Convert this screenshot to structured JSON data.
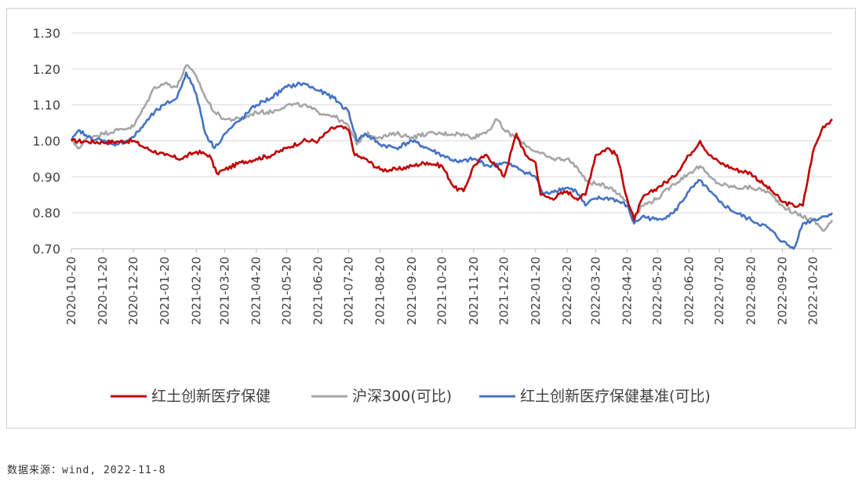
{
  "source_note": "数据来源：wind, 2022-11-8",
  "chart_data": {
    "type": "line",
    "title": "",
    "xlabel": "",
    "ylabel": "",
    "ylim": [
      0.7,
      1.3
    ],
    "yticks": [
      "1.30",
      "1.20",
      "1.10",
      "1.00",
      "0.90",
      "0.80",
      "0.70"
    ],
    "ytick_values": [
      1.3,
      1.2,
      1.1,
      1.0,
      0.9,
      0.8,
      0.7
    ],
    "grid": "horizontal",
    "legend_position": "bottom",
    "x_start": "2020-10-20",
    "x_end": "2022-11-08",
    "x_ticks": [
      "2020-10-20",
      "2020-11-20",
      "2020-12-20",
      "2021-01-20",
      "2021-02-20",
      "2021-03-20",
      "2021-04-20",
      "2021-05-20",
      "2021-06-20",
      "2021-07-20",
      "2021-08-20",
      "2021-09-20",
      "2021-10-20",
      "2021-11-20",
      "2021-12-20",
      "2022-01-20",
      "2022-02-20",
      "2022-03-20",
      "2022-04-20",
      "2022-05-20",
      "2022-06-20",
      "2022-07-20",
      "2022-08-20",
      "2022-09-20",
      "2022-10-20"
    ],
    "series": [
      {
        "name": "红土创新医疗保健",
        "color": "#C00000",
        "points": [
          [
            "2020-10-20",
            1.0
          ],
          [
            "2020-11-05",
            0.998
          ],
          [
            "2020-11-20",
            0.996
          ],
          [
            "2020-12-05",
            0.998
          ],
          [
            "2020-12-20",
            1.0
          ],
          [
            "2021-01-01",
            0.98
          ],
          [
            "2021-01-20",
            0.96
          ],
          [
            "2021-02-05",
            0.95
          ],
          [
            "2021-02-20",
            0.97
          ],
          [
            "2021-03-05",
            0.96
          ],
          [
            "2021-03-12",
            0.91
          ],
          [
            "2021-03-20",
            0.92
          ],
          [
            "2021-04-05",
            0.94
          ],
          [
            "2021-04-20",
            0.95
          ],
          [
            "2021-05-05",
            0.96
          ],
          [
            "2021-05-20",
            0.98
          ],
          [
            "2021-06-05",
            1.0
          ],
          [
            "2021-06-20",
            1.0
          ],
          [
            "2021-07-01",
            1.03
          ],
          [
            "2021-07-10",
            1.04
          ],
          [
            "2021-07-20",
            1.03
          ],
          [
            "2021-07-26",
            0.96
          ],
          [
            "2021-08-05",
            0.95
          ],
          [
            "2021-08-20",
            0.92
          ],
          [
            "2021-09-05",
            0.92
          ],
          [
            "2021-09-20",
            0.93
          ],
          [
            "2021-10-05",
            0.94
          ],
          [
            "2021-10-20",
            0.93
          ],
          [
            "2021-11-01",
            0.87
          ],
          [
            "2021-11-10",
            0.86
          ],
          [
            "2021-11-20",
            0.93
          ],
          [
            "2021-12-01",
            0.96
          ],
          [
            "2021-12-10",
            0.94
          ],
          [
            "2021-12-20",
            0.9
          ],
          [
            "2022-01-01",
            1.02
          ],
          [
            "2022-01-10",
            0.96
          ],
          [
            "2022-01-20",
            0.94
          ],
          [
            "2022-01-25",
            0.85
          ],
          [
            "2022-02-05",
            0.84
          ],
          [
            "2022-02-20",
            0.86
          ],
          [
            "2022-03-01",
            0.84
          ],
          [
            "2022-03-10",
            0.85
          ],
          [
            "2022-03-20",
            0.96
          ],
          [
            "2022-04-01",
            0.98
          ],
          [
            "2022-04-10",
            0.96
          ],
          [
            "2022-04-20",
            0.84
          ],
          [
            "2022-04-27",
            0.78
          ],
          [
            "2022-05-05",
            0.84
          ],
          [
            "2022-05-20",
            0.87
          ],
          [
            "2022-06-05",
            0.9
          ],
          [
            "2022-06-20",
            0.96
          ],
          [
            "2022-07-01",
            1.0
          ],
          [
            "2022-07-10",
            0.96
          ],
          [
            "2022-07-20",
            0.94
          ],
          [
            "2022-08-05",
            0.92
          ],
          [
            "2022-08-20",
            0.91
          ],
          [
            "2022-09-01",
            0.88
          ],
          [
            "2022-09-10",
            0.86
          ],
          [
            "2022-09-20",
            0.83
          ],
          [
            "2022-10-01",
            0.82
          ],
          [
            "2022-10-10",
            0.82
          ],
          [
            "2022-10-20",
            0.97
          ],
          [
            "2022-10-30",
            1.04
          ],
          [
            "2022-11-08",
            1.06
          ]
        ]
      },
      {
        "name": "沪深300(可比)",
        "color": "#A6A6A6",
        "points": [
          [
            "2020-10-20",
            1.0
          ],
          [
            "2020-10-28",
            0.98
          ],
          [
            "2020-11-05",
            1.01
          ],
          [
            "2020-11-20",
            1.02
          ],
          [
            "2020-12-05",
            1.03
          ],
          [
            "2020-12-20",
            1.04
          ],
          [
            "2021-01-01",
            1.1
          ],
          [
            "2021-01-10",
            1.15
          ],
          [
            "2021-01-20",
            1.16
          ],
          [
            "2021-02-01",
            1.15
          ],
          [
            "2021-02-10",
            1.21
          ],
          [
            "2021-02-20",
            1.18
          ],
          [
            "2021-03-01",
            1.12
          ],
          [
            "2021-03-10",
            1.08
          ],
          [
            "2021-03-20",
            1.06
          ],
          [
            "2021-04-05",
            1.06
          ],
          [
            "2021-04-20",
            1.08
          ],
          [
            "2021-05-05",
            1.08
          ],
          [
            "2021-05-20",
            1.1
          ],
          [
            "2021-06-05",
            1.1
          ],
          [
            "2021-06-20",
            1.08
          ],
          [
            "2021-07-05",
            1.07
          ],
          [
            "2021-07-20",
            1.04
          ],
          [
            "2021-07-28",
            0.99
          ],
          [
            "2021-08-05",
            1.02
          ],
          [
            "2021-08-20",
            1.01
          ],
          [
            "2021-09-05",
            1.02
          ],
          [
            "2021-09-20",
            1.01
          ],
          [
            "2021-10-05",
            1.02
          ],
          [
            "2021-10-20",
            1.02
          ],
          [
            "2021-11-05",
            1.02
          ],
          [
            "2021-11-20",
            1.01
          ],
          [
            "2021-12-05",
            1.03
          ],
          [
            "2021-12-13",
            1.06
          ],
          [
            "2021-12-20",
            1.03
          ],
          [
            "2022-01-05",
            1.0
          ],
          [
            "2022-01-20",
            0.97
          ],
          [
            "2022-02-05",
            0.95
          ],
          [
            "2022-02-20",
            0.95
          ],
          [
            "2022-03-01",
            0.93
          ],
          [
            "2022-03-10",
            0.89
          ],
          [
            "2022-03-20",
            0.88
          ],
          [
            "2022-04-05",
            0.87
          ],
          [
            "2022-04-20",
            0.83
          ],
          [
            "2022-04-27",
            0.79
          ],
          [
            "2022-05-05",
            0.82
          ],
          [
            "2022-05-20",
            0.84
          ],
          [
            "2022-06-05",
            0.88
          ],
          [
            "2022-06-20",
            0.91
          ],
          [
            "2022-07-01",
            0.93
          ],
          [
            "2022-07-10",
            0.9
          ],
          [
            "2022-07-20",
            0.88
          ],
          [
            "2022-08-05",
            0.87
          ],
          [
            "2022-08-20",
            0.87
          ],
          [
            "2022-09-05",
            0.86
          ],
          [
            "2022-09-20",
            0.82
          ],
          [
            "2022-10-01",
            0.8
          ],
          [
            "2022-10-20",
            0.78
          ],
          [
            "2022-10-31",
            0.75
          ],
          [
            "2022-11-08",
            0.78
          ]
        ]
      },
      {
        "name": "红土创新医疗保健基准(可比)",
        "color": "#4472C4",
        "points": [
          [
            "2020-10-20",
            1.0
          ],
          [
            "2020-10-28",
            1.03
          ],
          [
            "2020-11-05",
            1.01
          ],
          [
            "2020-11-20",
            1.0
          ],
          [
            "2020-12-05",
            0.99
          ],
          [
            "2020-12-20",
            1.01
          ],
          [
            "2021-01-01",
            1.05
          ],
          [
            "2021-01-10",
            1.08
          ],
          [
            "2021-01-20",
            1.1
          ],
          [
            "2021-02-01",
            1.12
          ],
          [
            "2021-02-10",
            1.19
          ],
          [
            "2021-02-20",
            1.13
          ],
          [
            "2021-03-01",
            1.02
          ],
          [
            "2021-03-10",
            0.98
          ],
          [
            "2021-03-20",
            1.02
          ],
          [
            "2021-04-05",
            1.06
          ],
          [
            "2021-04-20",
            1.1
          ],
          [
            "2021-05-05",
            1.12
          ],
          [
            "2021-05-20",
            1.15
          ],
          [
            "2021-06-05",
            1.16
          ],
          [
            "2021-06-20",
            1.14
          ],
          [
            "2021-07-05",
            1.12
          ],
          [
            "2021-07-20",
            1.08
          ],
          [
            "2021-07-28",
            1.0
          ],
          [
            "2021-08-05",
            1.02
          ],
          [
            "2021-08-20",
            0.99
          ],
          [
            "2021-09-05",
            0.98
          ],
          [
            "2021-09-20",
            1.0
          ],
          [
            "2021-10-05",
            0.98
          ],
          [
            "2021-10-20",
            0.96
          ],
          [
            "2021-11-05",
            0.94
          ],
          [
            "2021-11-20",
            0.95
          ],
          [
            "2021-12-05",
            0.93
          ],
          [
            "2021-12-20",
            0.94
          ],
          [
            "2022-01-05",
            0.92
          ],
          [
            "2022-01-20",
            0.9
          ],
          [
            "2022-01-28",
            0.85
          ],
          [
            "2022-02-05",
            0.86
          ],
          [
            "2022-02-20",
            0.87
          ],
          [
            "2022-03-01",
            0.86
          ],
          [
            "2022-03-10",
            0.82
          ],
          [
            "2022-03-20",
            0.84
          ],
          [
            "2022-04-05",
            0.84
          ],
          [
            "2022-04-20",
            0.82
          ],
          [
            "2022-04-27",
            0.77
          ],
          [
            "2022-05-05",
            0.79
          ],
          [
            "2022-05-20",
            0.78
          ],
          [
            "2022-06-05",
            0.8
          ],
          [
            "2022-06-20",
            0.86
          ],
          [
            "2022-07-01",
            0.89
          ],
          [
            "2022-07-10",
            0.86
          ],
          [
            "2022-07-20",
            0.83
          ],
          [
            "2022-08-05",
            0.8
          ],
          [
            "2022-08-20",
            0.78
          ],
          [
            "2022-09-05",
            0.76
          ],
          [
            "2022-09-20",
            0.72
          ],
          [
            "2022-10-01",
            0.7
          ],
          [
            "2022-10-10",
            0.77
          ],
          [
            "2022-10-20",
            0.78
          ],
          [
            "2022-10-31",
            0.79
          ],
          [
            "2022-11-08",
            0.8
          ]
        ]
      }
    ]
  }
}
